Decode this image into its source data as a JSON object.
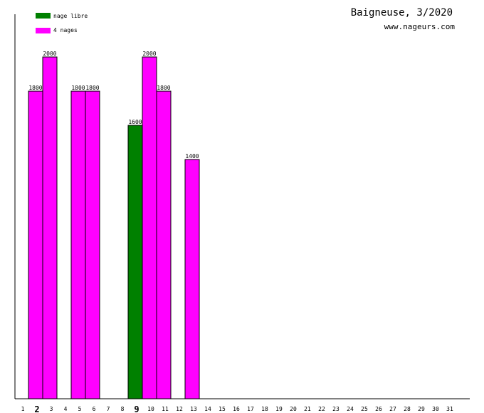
{
  "chart_data": {
    "type": "bar",
    "title": "Baigneuse, 3/2020",
    "subtitle": "www.nageurs.com",
    "xlabel": "",
    "ylabel": "",
    "categories": [
      "1",
      "2",
      "3",
      "4",
      "5",
      "6",
      "7",
      "8",
      "9",
      "10",
      "11",
      "12",
      "13",
      "14",
      "15",
      "16",
      "17",
      "18",
      "19",
      "20",
      "21",
      "22",
      "23",
      "24",
      "25",
      "26",
      "27",
      "28",
      "29",
      "30",
      "31"
    ],
    "bold_categories": [
      "2",
      "9"
    ],
    "ylim": [
      0,
      2000
    ],
    "grid": false,
    "legend_position": "top-left",
    "series": [
      {
        "name": "nage libre",
        "color": "#008000",
        "values": [
          null,
          null,
          null,
          null,
          null,
          null,
          null,
          null,
          1600,
          null,
          null,
          null,
          null,
          null,
          null,
          null,
          null,
          null,
          null,
          null,
          null,
          null,
          null,
          null,
          null,
          null,
          null,
          null,
          null,
          null,
          null
        ]
      },
      {
        "name": "4 nages",
        "color": "#ff00ff",
        "values": [
          null,
          1800,
          2000,
          null,
          1800,
          1800,
          null,
          null,
          null,
          2000,
          1800,
          null,
          1400,
          null,
          null,
          null,
          null,
          null,
          null,
          null,
          null,
          null,
          null,
          null,
          null,
          null,
          null,
          null,
          null,
          null,
          null
        ]
      }
    ]
  }
}
